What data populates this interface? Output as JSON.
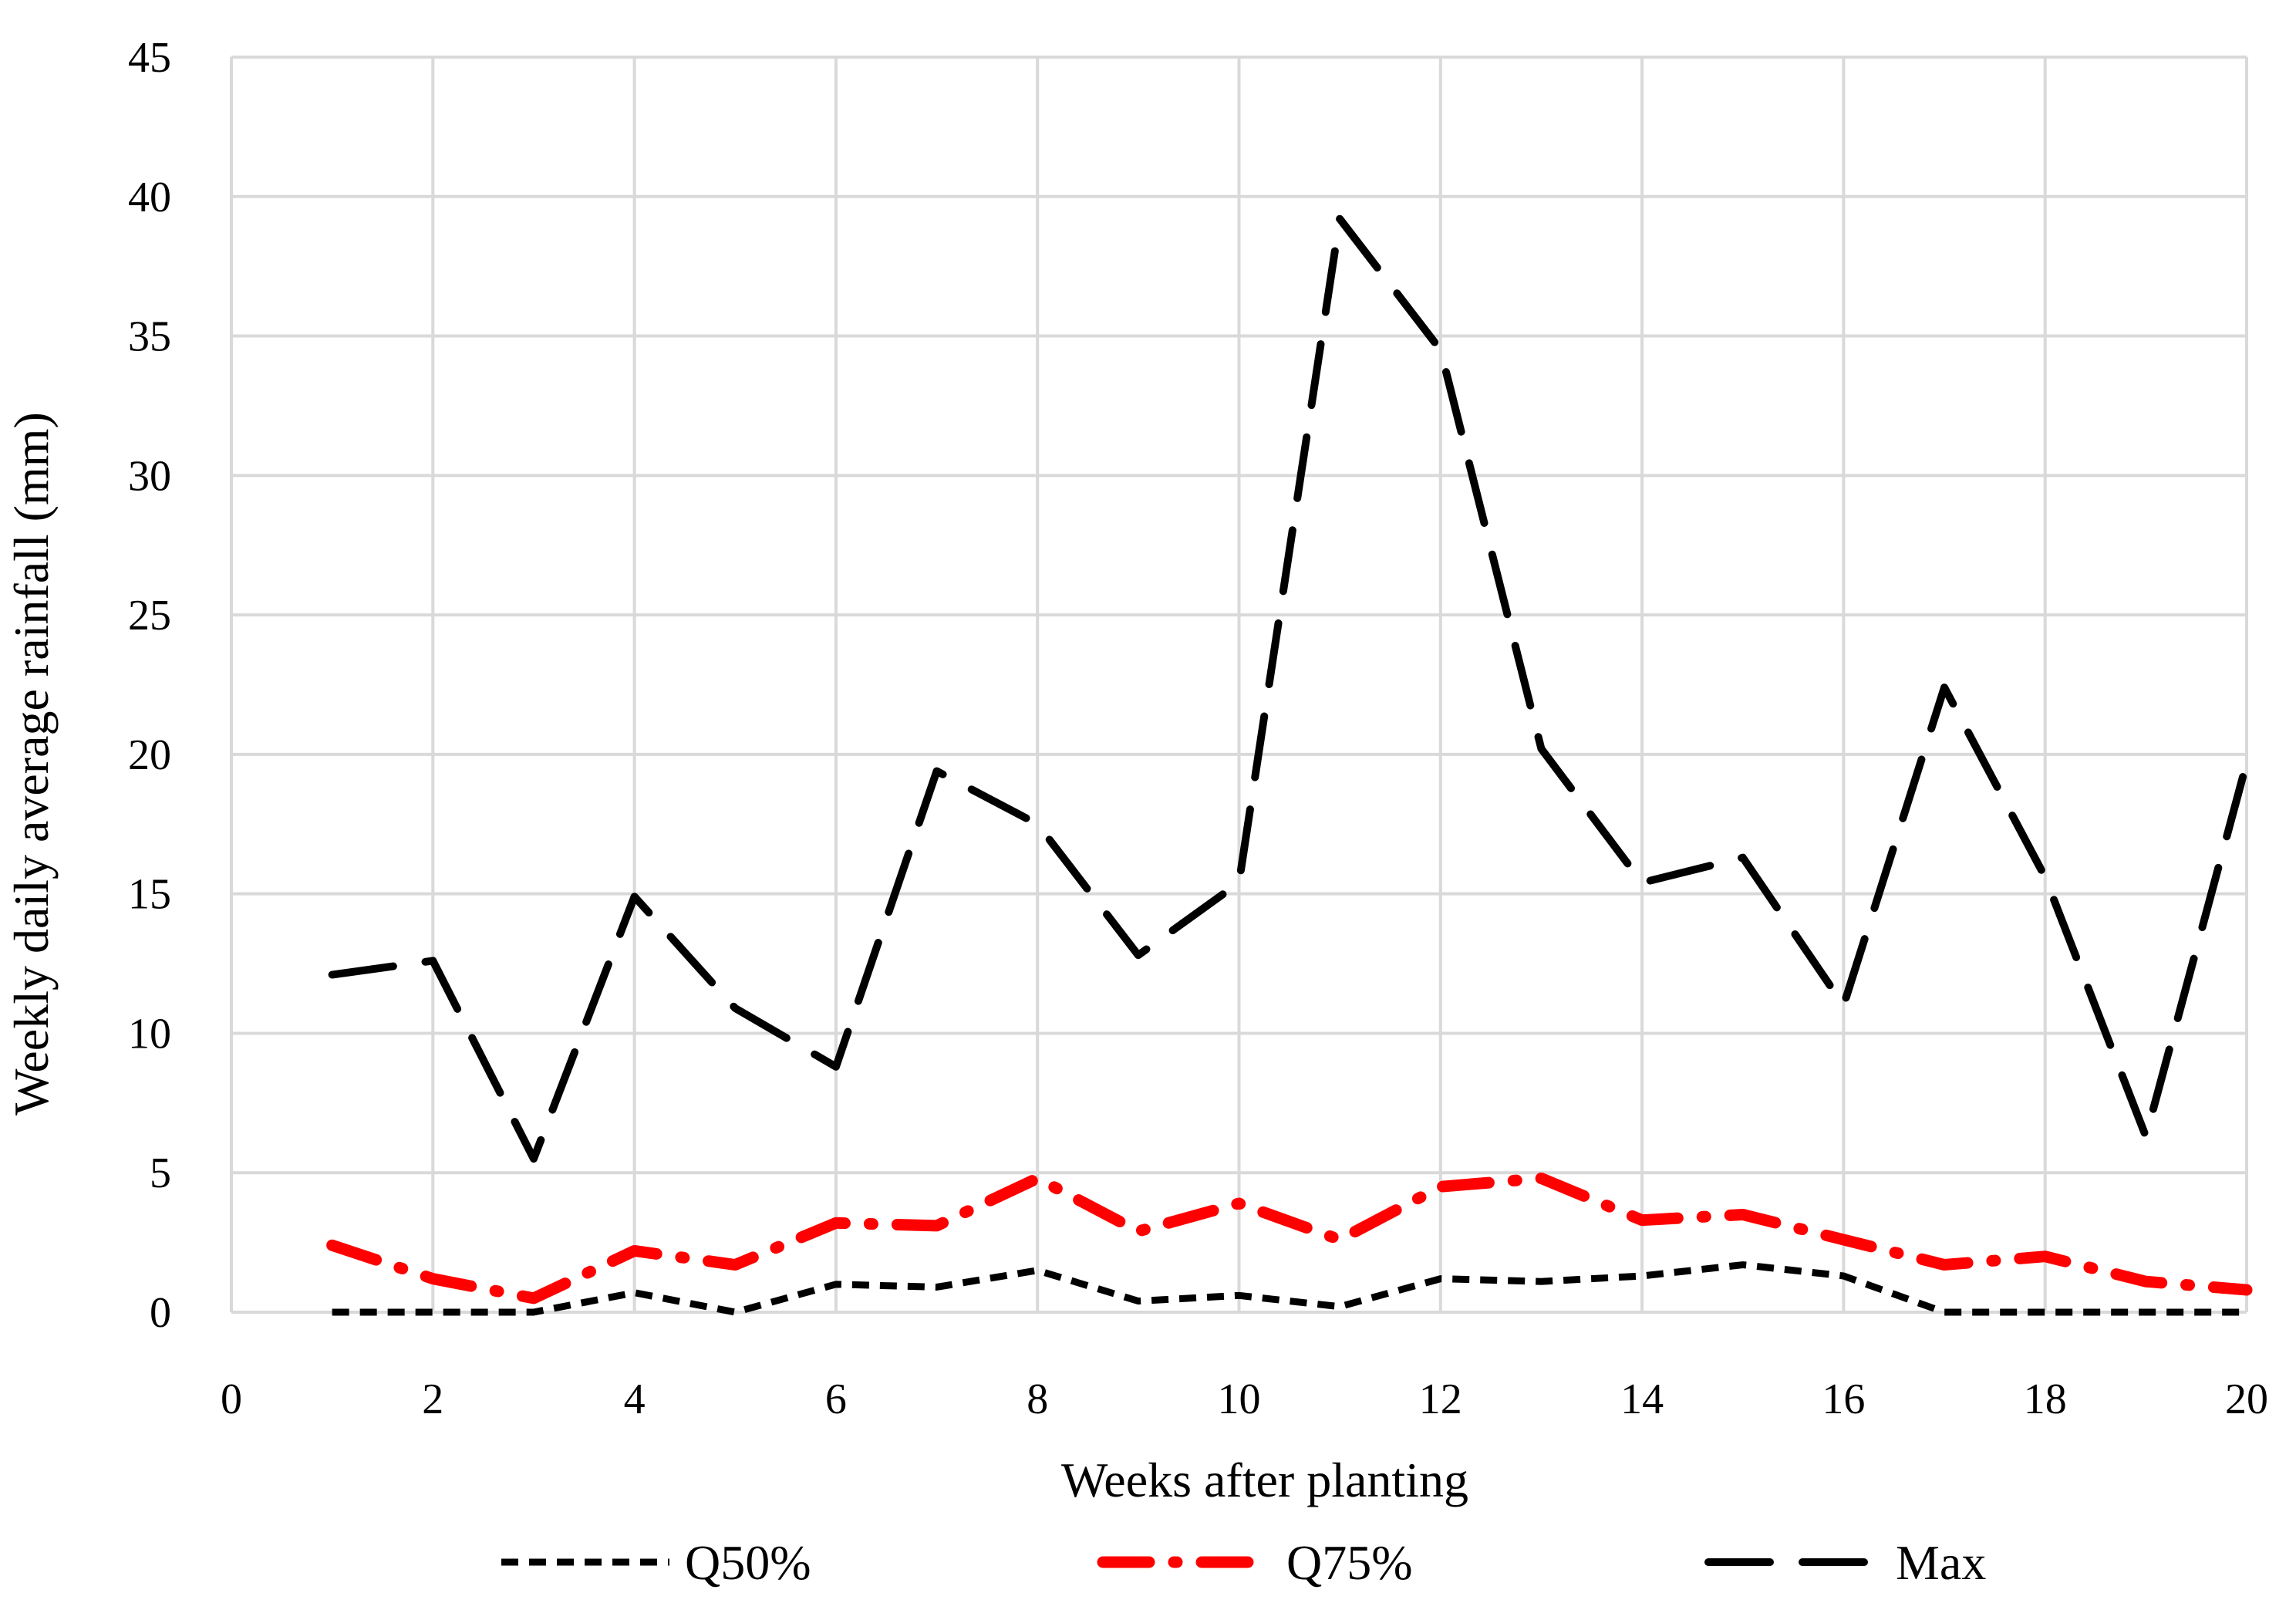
{
  "chart_data": {
    "type": "line",
    "title": "",
    "xlabel": "Weeks after planting",
    "ylabel": "Weekly daily average rainfall (mm)",
    "xlim": [
      0,
      20
    ],
    "ylim": [
      0,
      45
    ],
    "xticks": [
      0,
      2,
      4,
      6,
      8,
      10,
      12,
      14,
      16,
      18,
      20
    ],
    "yticks": [
      0,
      5,
      10,
      15,
      20,
      25,
      30,
      35,
      40,
      45
    ],
    "grid": "both",
    "legend_position": "bottom",
    "x": [
      1,
      2,
      3,
      4,
      5,
      6,
      7,
      8,
      9,
      10,
      11,
      12,
      13,
      14,
      15,
      16,
      17,
      18,
      19,
      20
    ],
    "series": [
      {
        "name": "Q50%",
        "color": "#000000",
        "style": "dashed",
        "values": [
          0,
          0,
          0,
          0.7,
          0,
          1.0,
          0.9,
          1.5,
          0.4,
          0.6,
          0.2,
          1.2,
          1.1,
          1.3,
          1.7,
          1.3,
          0,
          0,
          0,
          0
        ]
      },
      {
        "name": "Q75%",
        "color": "#ff0000",
        "style": "dash-dot",
        "values": [
          2.4,
          1.2,
          0.5,
          2.2,
          1.7,
          3.2,
          3.1,
          4.8,
          2.9,
          3.9,
          2.6,
          4.5,
          4.8,
          3.3,
          3.5,
          2.6,
          1.7,
          2.0,
          1.1,
          0.8
        ]
      },
      {
        "name": "Max",
        "color": "#000000",
        "style": "long-dash",
        "values": [
          12.1,
          12.6,
          5.5,
          14.9,
          10.9,
          8.8,
          19.4,
          17.5,
          12.8,
          15.4,
          39.2,
          34.5,
          20.2,
          15.4,
          16.3,
          11.0,
          22.4,
          15.6,
          6.3,
          19.7
        ]
      }
    ]
  }
}
